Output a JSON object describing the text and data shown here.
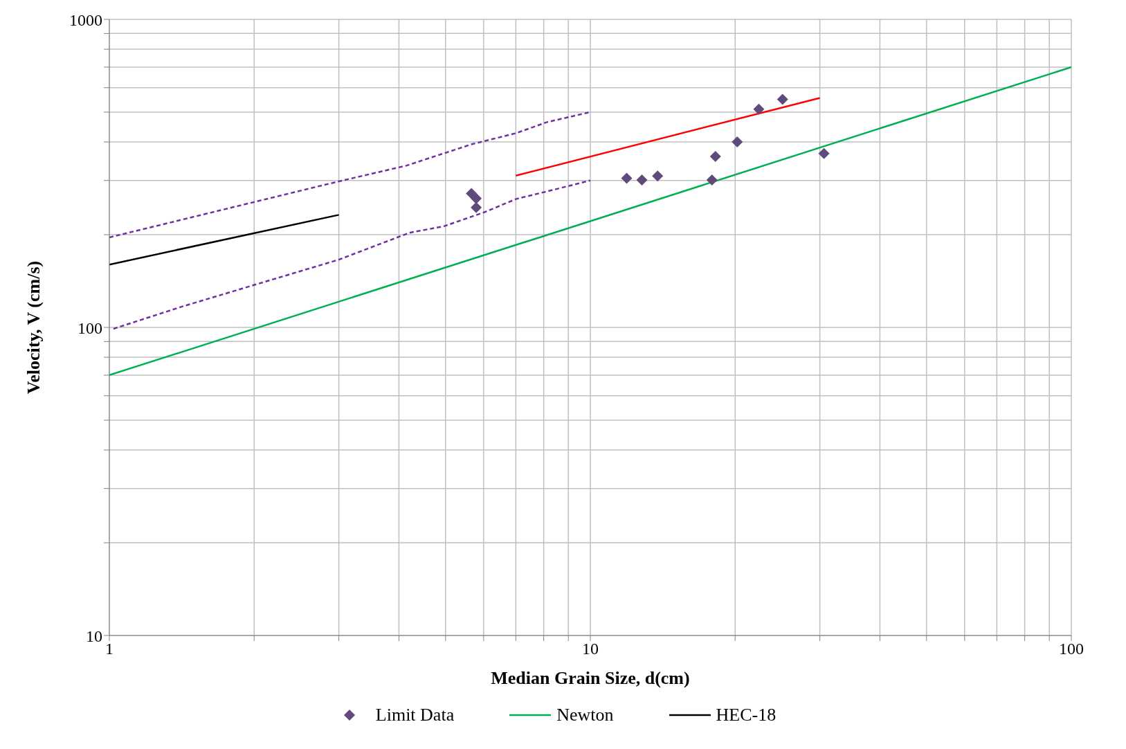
{
  "chart_data": {
    "type": "scatter",
    "xlabel": "Median Grain Size, d(cm)",
    "ylabel": "Velocity, V (cm/s)",
    "log": "xy",
    "grid": true,
    "legend": "bottom",
    "xlim": [
      1,
      100
    ],
    "ylim": [
      10,
      1000
    ],
    "xticks": [
      1,
      {
        "value": 2,
        "label": null
      },
      {
        "value": 3,
        "label": null
      },
      {
        "value": 4,
        "label": null
      },
      {
        "value": 5,
        "label": null
      },
      {
        "value": 6,
        "label": null
      },
      {
        "value": 7,
        "label": null
      },
      {
        "value": 8,
        "label": null
      },
      {
        "value": 9,
        "label": null
      },
      10,
      {
        "value": 20,
        "label": null
      },
      {
        "value": 30,
        "label": null
      },
      {
        "value": 40,
        "label": null
      },
      {
        "value": 50,
        "label": null
      },
      {
        "value": 60,
        "label": null
      },
      {
        "value": 70,
        "label": null
      },
      {
        "value": 80,
        "label": null
      },
      {
        "value": 90,
        "label": null
      },
      100
    ],
    "yticks": [
      10,
      {
        "value": 20,
        "label": null
      },
      {
        "value": 30,
        "label": null
      },
      {
        "value": 40,
        "label": null
      },
      {
        "value": 50,
        "label": null
      },
      {
        "value": 60,
        "label": null
      },
      {
        "value": 70,
        "label": null
      },
      {
        "value": 80,
        "label": null
      },
      {
        "value": 90,
        "label": null
      },
      100,
      {
        "value": 200,
        "label": null
      },
      {
        "value": 300,
        "label": null
      },
      {
        "value": 400,
        "label": null
      },
      {
        "value": 500,
        "label": null
      },
      {
        "value": 600,
        "label": null
      },
      {
        "value": 700,
        "label": null
      },
      {
        "value": 800,
        "label": null
      },
      {
        "value": 900,
        "label": null
      },
      1000
    ],
    "series": [
      {
        "name": "Limit Data",
        "color": "#604a7b",
        "marker": "diamond",
        "x": [
          5.66,
          5.79,
          5.79,
          11.9,
          12.8,
          13.8,
          17.9,
          18.2,
          20.2,
          22.4,
          25.1,
          30.6
        ],
        "values": [
          272,
          262,
          245,
          305,
          301,
          310,
          301,
          359,
          400,
          511,
          550,
          367
        ]
      },
      {
        "type": "line",
        "name": "Newton",
        "color": "#00b050",
        "line_style": "solid",
        "x": [
          1,
          100
        ],
        "values": [
          70,
          700
        ]
      },
      {
        "type": "line",
        "name": "HEC-18",
        "color": "#000000",
        "line_style": "solid",
        "x": [
          1,
          3
        ],
        "values": [
          160,
          232
        ]
      },
      {
        "type": "line",
        "color": "#ff0000",
        "line_style": "solid",
        "x": [
          7,
          30
        ],
        "values": [
          311,
          556
        ]
      },
      {
        "type": "line",
        "color": "#7030a0",
        "line_style": "dashed",
        "x": [
          1,
          3,
          4.14,
          5.66,
          7,
          8.13,
          10
        ],
        "values": [
          196,
          298,
          335,
          393,
          427,
          464,
          500
        ]
      },
      {
        "type": "line",
        "color": "#7030a0",
        "line_style": "dashed",
        "x": [
          1.02,
          1.42,
          3,
          4.21,
          4.96,
          6.04,
          7,
          8.4,
          10
        ],
        "values": [
          99,
          117,
          166,
          203,
          213,
          237,
          261,
          280,
          300
        ]
      }
    ]
  }
}
